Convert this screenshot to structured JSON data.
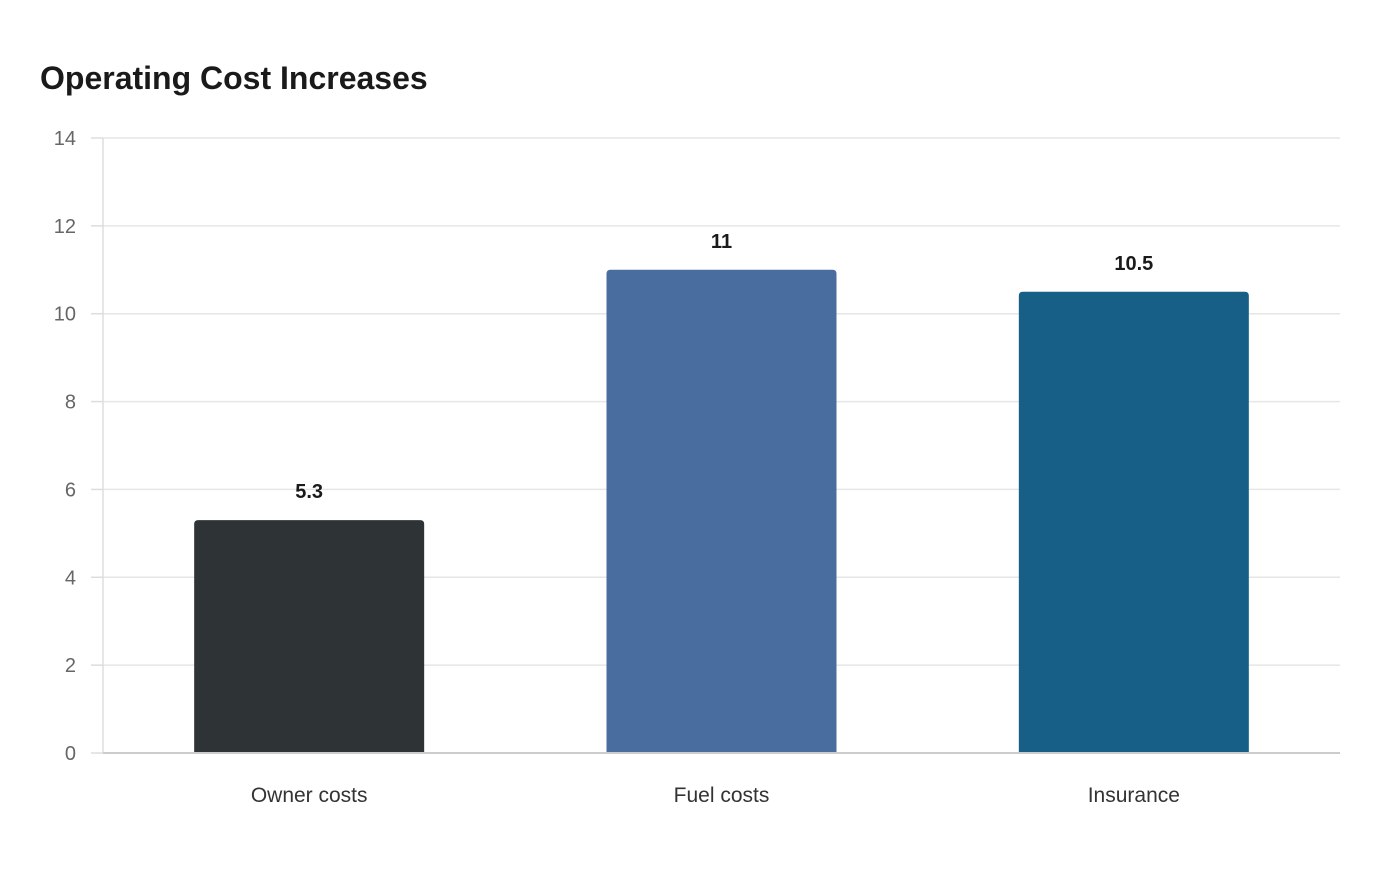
{
  "chart_data": {
    "type": "bar",
    "title": "Operating Cost Increases",
    "categories": [
      "Owner costs",
      "Fuel costs",
      "Insurance"
    ],
    "values": [
      5.3,
      11,
      10.5
    ],
    "data_labels": [
      "5.3",
      "11",
      "10.5"
    ],
    "bar_colors": [
      "#2e3436",
      "#4a6da0",
      "#175f87"
    ],
    "ylim": [
      0,
      14
    ],
    "yticks": [
      0,
      2,
      4,
      6,
      8,
      10,
      12,
      14
    ],
    "xlabel": "",
    "ylabel": "",
    "grid": true,
    "legend": "none"
  }
}
